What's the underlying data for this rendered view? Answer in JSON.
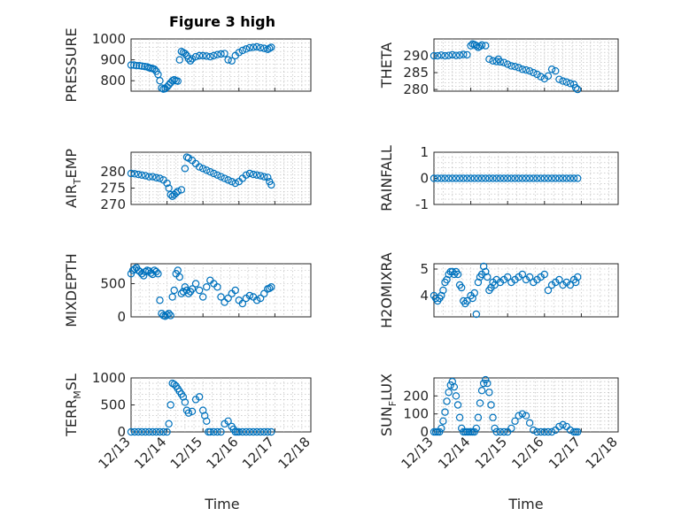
{
  "title": "Figure 3 high",
  "colors": {
    "marker": "#0072bd",
    "axis": "#262626",
    "grid": "#b5b5b5"
  },
  "chart_data": [
    {
      "type": "scatter",
      "title": "Figure 3 high",
      "ylabel_parts": [
        "PRESSURE"
      ],
      "ylim": [
        750,
        1000
      ],
      "yticks": [
        800,
        900,
        1000
      ],
      "xlim": [
        0,
        5
      ],
      "xticks": [
        0,
        1,
        2,
        3,
        4,
        5
      ],
      "xtick_labels": [
        "12/13",
        "12/14",
        "12/15",
        "12/16",
        "12/17",
        "12/18"
      ],
      "x": [
        0.0,
        0.08,
        0.15,
        0.23,
        0.3,
        0.38,
        0.45,
        0.5,
        0.55,
        0.6,
        0.65,
        0.7,
        0.75,
        0.8,
        0.85,
        0.9,
        0.95,
        1.0,
        1.05,
        1.1,
        1.15,
        1.2,
        1.25,
        1.3,
        1.35,
        1.4,
        1.45,
        1.5,
        1.55,
        1.6,
        1.65,
        1.7,
        1.8,
        1.9,
        2.0,
        2.1,
        2.2,
        2.3,
        2.4,
        2.5,
        2.6,
        2.7,
        2.8,
        2.9,
        3.0,
        3.1,
        3.2,
        3.3,
        3.4,
        3.5,
        3.6,
        3.7,
        3.8,
        3.85,
        3.9
      ],
      "values": [
        875,
        875,
        872,
        872,
        870,
        868,
        866,
        862,
        860,
        858,
        855,
        845,
        830,
        800,
        765,
        760,
        762,
        770,
        780,
        790,
        800,
        805,
        800,
        798,
        900,
        940,
        935,
        930,
        920,
        905,
        895,
        905,
        915,
        920,
        920,
        918,
        915,
        920,
        925,
        928,
        930,
        900,
        895,
        920,
        935,
        945,
        952,
        958,
        960,
        962,
        958,
        955,
        950,
        955,
        960
      ],
      "series_name": "PRESSURE"
    },
    {
      "type": "scatter",
      "ylabel_parts": [
        "THETA"
      ],
      "ylim": [
        279.5,
        295
      ],
      "yticks": [
        280,
        285,
        290
      ],
      "xlim": [
        0,
        5
      ],
      "xticks": [
        0,
        1,
        2,
        3,
        4,
        5
      ],
      "xtick_labels": [
        "12/13",
        "12/14",
        "12/15",
        "12/16",
        "12/17",
        "12/18"
      ],
      "x": [
        0.0,
        0.1,
        0.2,
        0.3,
        0.4,
        0.5,
        0.6,
        0.7,
        0.8,
        0.9,
        1.0,
        1.05,
        1.1,
        1.15,
        1.2,
        1.25,
        1.3,
        1.4,
        1.5,
        1.6,
        1.7,
        1.75,
        1.8,
        1.9,
        2.0,
        2.1,
        2.2,
        2.3,
        2.4,
        2.5,
        2.6,
        2.7,
        2.8,
        2.9,
        3.0,
        3.1,
        3.2,
        3.3,
        3.4,
        3.5,
        3.6,
        3.7,
        3.8,
        3.85,
        3.9
      ],
      "values": [
        290,
        290,
        290.2,
        290,
        290.1,
        290.3,
        290.1,
        290.2,
        290.4,
        290.3,
        293,
        293.5,
        293.3,
        293,
        292.5,
        292.8,
        293.2,
        293,
        289,
        288.5,
        288.3,
        289,
        288.2,
        288,
        287.5,
        287,
        286.8,
        286.5,
        286,
        285.8,
        285.5,
        285,
        284.5,
        283.8,
        283.2,
        284,
        286,
        285.5,
        283,
        282.5,
        282.2,
        281.8,
        281.5,
        280.5,
        280
      ],
      "series_name": "THETA"
    },
    {
      "type": "scatter",
      "ylabel_parts": [
        "AIR",
        "T",
        "EMP"
      ],
      "ylim": [
        270,
        286
      ],
      "yticks": [
        270,
        275,
        280
      ],
      "xlim": [
        0,
        5
      ],
      "xticks": [
        0,
        1,
        2,
        3,
        4,
        5
      ],
      "xtick_labels": [
        "12/13",
        "12/14",
        "12/15",
        "12/16",
        "12/17",
        "12/18"
      ],
      "x": [
        0.0,
        0.1,
        0.2,
        0.3,
        0.4,
        0.5,
        0.6,
        0.7,
        0.8,
        0.9,
        1.0,
        1.05,
        1.1,
        1.15,
        1.2,
        1.25,
        1.3,
        1.4,
        1.5,
        1.55,
        1.6,
        1.7,
        1.8,
        1.9,
        2.0,
        2.1,
        2.2,
        2.3,
        2.4,
        2.5,
        2.6,
        2.7,
        2.8,
        2.9,
        3.0,
        3.1,
        3.2,
        3.3,
        3.4,
        3.5,
        3.6,
        3.7,
        3.8,
        3.85,
        3.9
      ],
      "values": [
        279.5,
        279.4,
        279.2,
        279,
        278.8,
        278.5,
        278.5,
        278.2,
        278,
        277.5,
        276.5,
        275,
        273,
        272.5,
        273,
        273.5,
        274,
        274.5,
        281,
        284.5,
        284.2,
        283.5,
        282.5,
        281.5,
        281,
        280.5,
        280,
        279.5,
        279,
        278.5,
        278,
        277.5,
        277,
        276.5,
        277,
        278,
        279,
        279.5,
        279.2,
        279,
        278.8,
        278.5,
        278.3,
        277,
        276
      ],
      "series_name": "AIR_TEMP"
    },
    {
      "type": "scatter",
      "ylabel_parts": [
        "RAINFALL"
      ],
      "ylim": [
        -1,
        1
      ],
      "yticks": [
        -1,
        0,
        1
      ],
      "xlim": [
        0,
        5
      ],
      "xticks": [
        0,
        1,
        2,
        3,
        4,
        5
      ],
      "xtick_labels": [
        "12/13",
        "12/14",
        "12/15",
        "12/16",
        "12/17",
        "12/18"
      ],
      "x": [
        0.0,
        0.1,
        0.2,
        0.3,
        0.4,
        0.5,
        0.6,
        0.7,
        0.8,
        0.9,
        1.0,
        1.1,
        1.2,
        1.3,
        1.4,
        1.5,
        1.6,
        1.7,
        1.8,
        1.9,
        2.0,
        2.1,
        2.2,
        2.3,
        2.4,
        2.5,
        2.6,
        2.7,
        2.8,
        2.9,
        3.0,
        3.1,
        3.2,
        3.3,
        3.4,
        3.5,
        3.6,
        3.7,
        3.8,
        3.9
      ],
      "values": [
        0,
        0,
        0,
        0,
        0,
        0,
        0,
        0,
        0,
        0,
        0,
        0,
        0,
        0,
        0,
        0,
        0,
        0,
        0,
        0,
        0,
        0,
        0,
        0,
        0,
        0,
        0,
        0,
        0,
        0,
        0,
        0,
        0,
        0,
        0,
        0,
        0,
        0,
        0,
        0
      ],
      "series_name": "RAINFALL"
    },
    {
      "type": "scatter",
      "ylabel_parts": [
        "MIXDEPTH"
      ],
      "ylim": [
        0,
        800
      ],
      "yticks": [
        0,
        500
      ],
      "xlim": [
        0,
        5
      ],
      "xticks": [
        0,
        1,
        2,
        3,
        4,
        5
      ],
      "xtick_labels": [
        "12/13",
        "12/14",
        "12/15",
        "12/16",
        "12/17",
        "12/18"
      ],
      "x": [
        0.0,
        0.05,
        0.1,
        0.15,
        0.2,
        0.25,
        0.3,
        0.35,
        0.4,
        0.45,
        0.5,
        0.55,
        0.6,
        0.65,
        0.7,
        0.75,
        0.8,
        0.85,
        0.9,
        0.95,
        1.0,
        1.05,
        1.1,
        1.15,
        1.2,
        1.25,
        1.3,
        1.35,
        1.4,
        1.45,
        1.5,
        1.55,
        1.6,
        1.65,
        1.7,
        1.8,
        1.9,
        2.0,
        2.1,
        2.2,
        2.3,
        2.4,
        2.5,
        2.6,
        2.7,
        2.8,
        2.9,
        3.0,
        3.1,
        3.2,
        3.3,
        3.4,
        3.5,
        3.6,
        3.7,
        3.8,
        3.85,
        3.9
      ],
      "values": [
        650,
        700,
        720,
        740,
        700,
        680,
        650,
        620,
        680,
        700,
        690,
        660,
        640,
        700,
        680,
        650,
        250,
        50,
        20,
        10,
        30,
        50,
        20,
        300,
        400,
        650,
        700,
        600,
        350,
        380,
        450,
        400,
        350,
        380,
        420,
        500,
        400,
        300,
        450,
        550,
        500,
        450,
        300,
        220,
        280,
        350,
        400,
        250,
        200,
        280,
        320,
        300,
        250,
        280,
        350,
        420,
        430,
        450
      ],
      "series_name": "MIXDEPTH"
    },
    {
      "type": "scatter",
      "ylabel_parts": [
        "H2OMIXRA"
      ],
      "ylim": [
        3.2,
        5.2
      ],
      "yticks": [
        4,
        5
      ],
      "xlim": [
        0,
        5
      ],
      "xticks": [
        0,
        1,
        2,
        3,
        4,
        5
      ],
      "xtick_labels": [
        "12/13",
        "12/14",
        "12/15",
        "12/16",
        "12/17",
        "12/18"
      ],
      "x": [
        0.0,
        0.05,
        0.1,
        0.15,
        0.2,
        0.25,
        0.3,
        0.35,
        0.4,
        0.45,
        0.5,
        0.55,
        0.6,
        0.65,
        0.7,
        0.75,
        0.8,
        0.85,
        0.9,
        1.0,
        1.05,
        1.1,
        1.15,
        1.2,
        1.25,
        1.3,
        1.35,
        1.4,
        1.45,
        1.5,
        1.55,
        1.6,
        1.65,
        1.7,
        1.8,
        1.9,
        2.0,
        2.1,
        2.2,
        2.3,
        2.4,
        2.5,
        2.6,
        2.7,
        2.8,
        2.9,
        3.0,
        3.1,
        3.2,
        3.3,
        3.4,
        3.5,
        3.6,
        3.7,
        3.8,
        3.85,
        3.9
      ],
      "values": [
        4.0,
        3.9,
        3.8,
        3.9,
        4.0,
        4.2,
        4.5,
        4.6,
        4.8,
        4.9,
        4.9,
        4.8,
        4.9,
        4.8,
        4.4,
        4.3,
        3.8,
        3.7,
        3.8,
        4.0,
        3.9,
        4.1,
        3.3,
        4.5,
        4.7,
        4.8,
        5.1,
        4.9,
        4.7,
        4.2,
        4.3,
        4.5,
        4.4,
        4.6,
        4.5,
        4.6,
        4.7,
        4.5,
        4.6,
        4.7,
        4.8,
        4.6,
        4.7,
        4.5,
        4.6,
        4.7,
        4.8,
        4.2,
        4.4,
        4.5,
        4.6,
        4.4,
        4.5,
        4.4,
        4.6,
        4.5,
        4.7
      ],
      "series_name": "H2OMIXRA"
    },
    {
      "type": "scatter",
      "ylabel_parts": [
        "TERR",
        "M",
        "SL"
      ],
      "ylim": [
        0,
        1000
      ],
      "yticks": [
        0,
        500,
        1000
      ],
      "xlim": [
        0,
        5
      ],
      "xticks": [
        0,
        1,
        2,
        3,
        4,
        5
      ],
      "xtick_labels": [
        "12/13",
        "12/14",
        "12/15",
        "12/16",
        "12/17",
        "12/18"
      ],
      "x": [
        0.0,
        0.1,
        0.2,
        0.3,
        0.4,
        0.5,
        0.6,
        0.7,
        0.8,
        0.9,
        1.0,
        1.05,
        1.1,
        1.15,
        1.2,
        1.25,
        1.3,
        1.35,
        1.4,
        1.45,
        1.5,
        1.55,
        1.6,
        1.7,
        1.8,
        1.9,
        2.0,
        2.05,
        2.1,
        2.15,
        2.2,
        2.3,
        2.4,
        2.5,
        2.6,
        2.7,
        2.8,
        2.85,
        2.9,
        2.95,
        3.0,
        3.1,
        3.2,
        3.3,
        3.4,
        3.5,
        3.6,
        3.7,
        3.8,
        3.9
      ],
      "values": [
        0,
        0,
        0,
        0,
        0,
        0,
        0,
        0,
        0,
        0,
        0,
        150,
        500,
        900,
        880,
        850,
        800,
        750,
        700,
        650,
        550,
        400,
        350,
        380,
        600,
        650,
        400,
        300,
        200,
        0,
        0,
        0,
        0,
        0,
        150,
        200,
        100,
        50,
        0,
        0,
        0,
        0,
        0,
        0,
        0,
        0,
        0,
        0,
        0,
        0
      ],
      "series_name": "TERR_MSL"
    },
    {
      "type": "scatter",
      "ylabel_parts": [
        "SUN",
        "F",
        "LUX"
      ],
      "ylim": [
        0,
        300
      ],
      "yticks": [
        0,
        100,
        200
      ],
      "xlim": [
        0,
        5
      ],
      "xticks": [
        0,
        1,
        2,
        3,
        4,
        5
      ],
      "xtick_labels": [
        "12/13",
        "12/14",
        "12/15",
        "12/16",
        "12/17",
        "12/18"
      ],
      "x": [
        0.0,
        0.05,
        0.1,
        0.15,
        0.2,
        0.25,
        0.3,
        0.35,
        0.4,
        0.45,
        0.5,
        0.55,
        0.6,
        0.65,
        0.7,
        0.75,
        0.8,
        0.85,
        0.9,
        0.95,
        1.0,
        1.05,
        1.1,
        1.15,
        1.2,
        1.25,
        1.3,
        1.35,
        1.4,
        1.45,
        1.5,
        1.55,
        1.6,
        1.65,
        1.7,
        1.8,
        1.9,
        2.0,
        2.1,
        2.2,
        2.3,
        2.4,
        2.5,
        2.6,
        2.7,
        2.8,
        2.9,
        3.0,
        3.1,
        3.2,
        3.3,
        3.4,
        3.5,
        3.6,
        3.7,
        3.8,
        3.85,
        3.9
      ],
      "values": [
        0,
        0,
        0,
        0,
        20,
        60,
        110,
        170,
        220,
        260,
        280,
        250,
        200,
        150,
        80,
        20,
        0,
        0,
        0,
        0,
        0,
        0,
        0,
        20,
        80,
        160,
        230,
        270,
        290,
        270,
        220,
        150,
        80,
        20,
        0,
        0,
        0,
        0,
        20,
        60,
        90,
        100,
        90,
        50,
        10,
        0,
        0,
        0,
        0,
        0,
        10,
        30,
        40,
        30,
        10,
        0,
        0,
        0
      ],
      "series_name": "SUN_FLUX"
    }
  ],
  "xlabels": [
    "Time",
    "Time"
  ]
}
